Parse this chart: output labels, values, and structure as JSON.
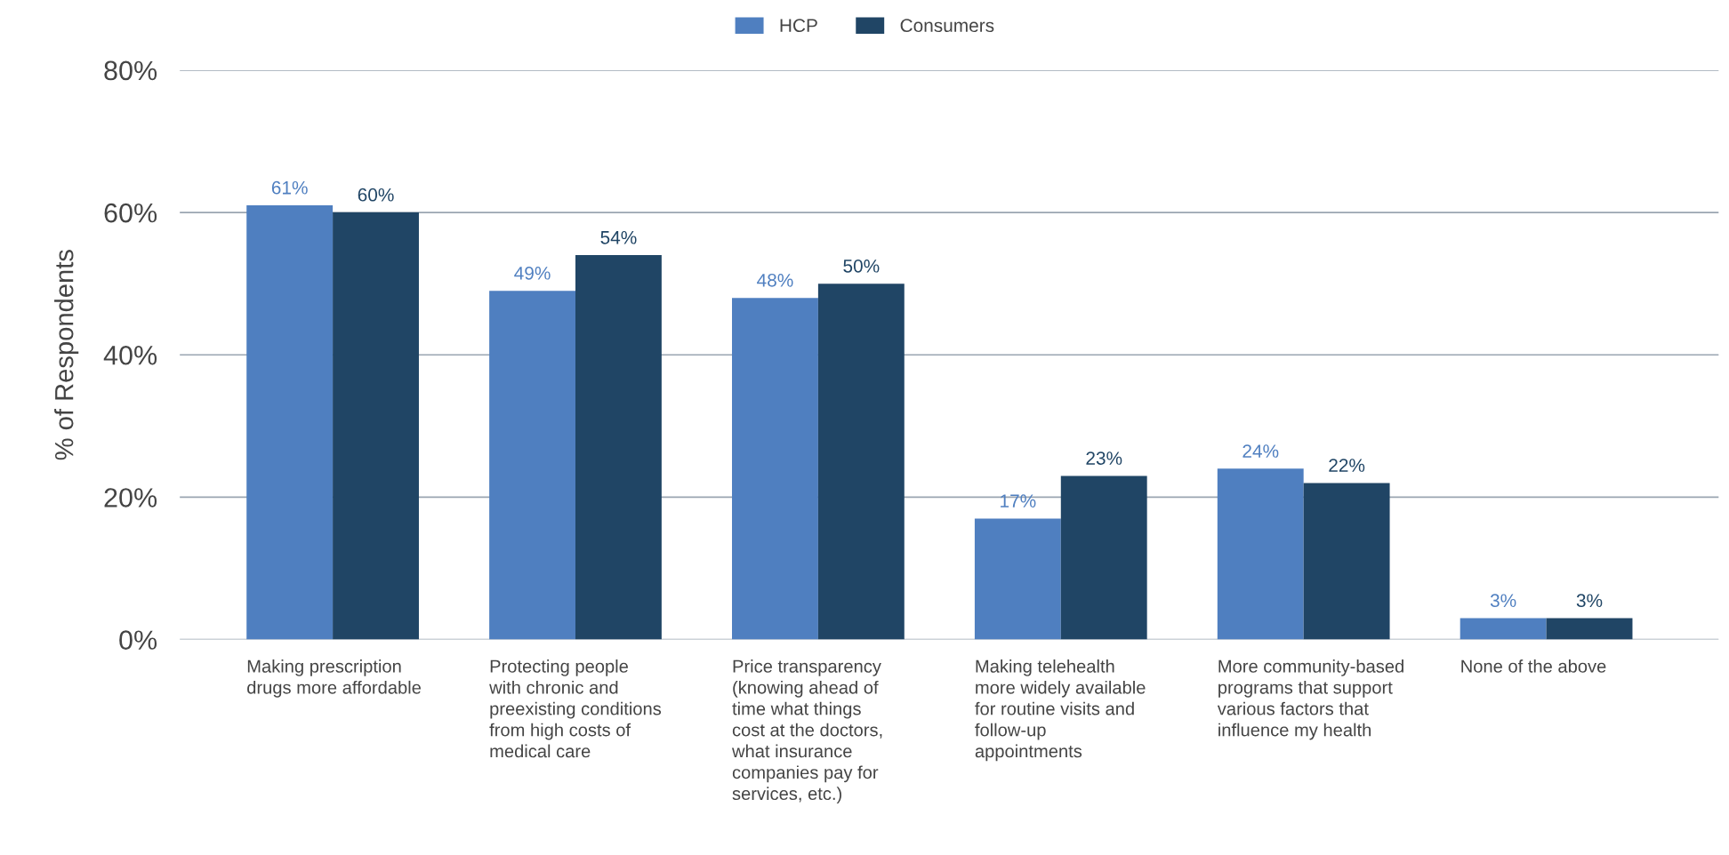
{
  "chart_data": {
    "type": "bar",
    "categories": [
      "Making prescription\ndrugs more affordable",
      "Protecting people\nwith chronic and\npreexisting conditions\nfrom high costs of\nmedical care",
      "Price transparency\n(knowing ahead of\ntime what things\ncost at the doctors,\nwhat insurance\ncompanies pay for\nservices, etc.)",
      "Making telehealth\nmore widely available\nfor routine visits and\nfollow-up\nappointments",
      "More community-based\nprograms that support\nvarious factors that\ninfluence my health",
      "None of the above"
    ],
    "series": [
      {
        "name": "HCP",
        "color": "#4f7fc0",
        "values": [
          61,
          49,
          48,
          17,
          24,
          3
        ],
        "value_labels": [
          "61%",
          "49%",
          "48%",
          "17%",
          "24%",
          "3%"
        ]
      },
      {
        "name": "Consumers",
        "color": "#204565",
        "values": [
          60,
          54,
          50,
          23,
          22,
          3
        ],
        "value_labels": [
          "60%",
          "54%",
          "50%",
          "23%",
          "22%",
          "3%"
        ]
      }
    ],
    "ylabel": "% of Respondents",
    "ylim": [
      0,
      80
    ],
    "yticks": [
      {
        "value": 0,
        "label": "0%"
      },
      {
        "value": 20,
        "label": "20%"
      },
      {
        "value": 40,
        "label": "40%"
      },
      {
        "value": 60,
        "label": "60%"
      },
      {
        "value": 80,
        "label": "80%"
      }
    ],
    "grid": "y",
    "legend": "top"
  }
}
